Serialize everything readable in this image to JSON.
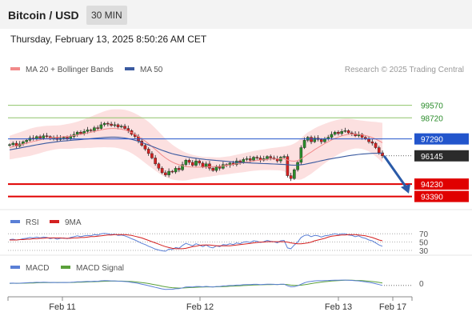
{
  "header": {
    "title": "Bitcoin / USD",
    "timeframe": "30 MIN"
  },
  "datetime": "Thursday, February 13, 2025 8:50:26 AM CET",
  "legend": {
    "ma20": "MA 20 + Bollinger Bands",
    "ma50": "MA 50"
  },
  "credit": "Research © 2025 Trading Central",
  "colors": {
    "up": "#2a8c2a",
    "down": "#d42020",
    "ma20": "#f28a8a",
    "ma50": "#3a5aa0",
    "band": "#fbd8d8",
    "resistance": "#8fc46a",
    "support": "#e00000",
    "pivot": "#2255cc",
    "rsi": "#5a7fd6",
    "rsi_ma": "#d42020",
    "macd": "#5a7fd6",
    "macd_signal": "#5aa03a",
    "arrow": "#2a5aa8"
  },
  "chart_data": [
    {
      "type": "candlestick",
      "x_ticks": [
        "Feb 11",
        "Feb 12",
        "Feb 13",
        "Feb 17"
      ],
      "ylim": [
        92500,
        101500
      ],
      "levels": [
        {
          "label": "99570",
          "value": 99570,
          "kind": "resistance"
        },
        {
          "label": "98720",
          "value": 98720,
          "kind": "resistance"
        },
        {
          "label": "97290",
          "value": 97290,
          "kind": "pivot"
        },
        {
          "label": "96145",
          "value": 96145,
          "kind": "last"
        },
        {
          "label": "94230",
          "value": 94230,
          "kind": "support"
        },
        {
          "label": "93390",
          "value": 93390,
          "kind": "support"
        }
      ],
      "close": [
        96900,
        97000,
        96800,
        96950,
        97100,
        97200,
        97350,
        97300,
        97450,
        97350,
        97500,
        97450,
        97300,
        97400,
        97250,
        97350,
        97400,
        97300,
        97450,
        97600,
        97750,
        97650,
        97800,
        97900,
        97850,
        98050,
        98000,
        98250,
        98350,
        98300,
        98200,
        98250,
        98100,
        98150,
        98000,
        97850,
        97600,
        97450,
        97150,
        96850,
        96600,
        96300,
        96000,
        95600,
        95300,
        95000,
        94850,
        95100,
        95050,
        95300,
        95200,
        95550,
        95850,
        95700,
        95500,
        95800,
        95650,
        95400,
        95600,
        95300,
        95150,
        95400,
        95300,
        95550,
        95500,
        95650,
        95550,
        95800,
        95700,
        95900,
        95950,
        95850,
        96050,
        96000,
        95850,
        95950,
        96100,
        96000,
        95950,
        95800,
        96050,
        96100,
        94800,
        94600,
        95200,
        95700,
        96700,
        97200,
        97400,
        97100,
        97350,
        97250,
        97100,
        97300,
        97400,
        97600,
        97750,
        97650,
        97800,
        97850,
        97700,
        97650,
        97500,
        97600,
        97400,
        97300,
        97100,
        97000,
        96700,
        96350,
        96145
      ],
      "ma20": [
        96700,
        96760,
        96820,
        96880,
        96940,
        97000,
        97060,
        97120,
        97180,
        97220,
        97280,
        97320,
        97350,
        97380,
        97400,
        97420,
        97440,
        97460,
        97480,
        97520,
        97560,
        97600,
        97640,
        97700,
        97740,
        97800,
        97850,
        97900,
        97950,
        97980,
        98000,
        98000,
        97980,
        97950,
        97900,
        97820,
        97720,
        97600,
        97460,
        97300,
        97140,
        96960,
        96780,
        96580,
        96380,
        96180,
        96000,
        95850,
        95720,
        95620,
        95540,
        95470,
        95420,
        95400,
        95390,
        95380,
        95380,
        95380,
        95390,
        95400,
        95410,
        95420,
        95440,
        95460,
        95490,
        95520,
        95560,
        95600,
        95640,
        95680,
        95720,
        95760,
        95800,
        95830,
        95860,
        95880,
        95900,
        95920,
        95930,
        95940,
        95950,
        95940,
        95860,
        95800,
        95780,
        95820,
        95940,
        96100,
        96260,
        96400,
        96560,
        96700,
        96840,
        96980,
        97100,
        97220,
        97320,
        97420,
        97500,
        97560,
        97600,
        97620,
        97620,
        97600,
        97570,
        97520,
        97460,
        97380,
        97280,
        97160,
        97030
      ],
      "ma50": [
        96550,
        96590,
        96630,
        96670,
        96720,
        96760,
        96800,
        96850,
        96890,
        96930,
        96970,
        97010,
        97040,
        97070,
        97100,
        97130,
        97150,
        97170,
        97190,
        97210,
        97230,
        97250,
        97270,
        97290,
        97310,
        97330,
        97350,
        97370,
        97390,
        97400,
        97410,
        97410,
        97400,
        97380,
        97350,
        97310,
        97260,
        97200,
        97130,
        97050,
        96970,
        96880,
        96790,
        96700,
        96610,
        96520,
        96440,
        96360,
        96290,
        96230,
        96180,
        96130,
        96090,
        96050,
        96010,
        95980,
        95950,
        95920,
        95890,
        95870,
        95850,
        95830,
        95810,
        95790,
        95770,
        95750,
        95730,
        95710,
        95690,
        95680,
        95670,
        95660,
        95650,
        95640,
        95630,
        95620,
        95610,
        95600,
        95590,
        95580,
        95570,
        95560,
        95540,
        95520,
        95510,
        95520,
        95540,
        95570,
        95610,
        95660,
        95710,
        95760,
        95810,
        95860,
        95910,
        95950,
        95990,
        96030,
        96070,
        96110,
        96150,
        96180,
        96210,
        96240,
        96260,
        96280,
        96300,
        96310,
        96320,
        96320,
        96310
      ],
      "band_width": [
        800,
        820,
        840,
        860,
        880,
        900,
        920,
        920,
        920,
        900,
        880,
        860,
        840,
        820,
        800,
        800,
        820,
        840,
        860,
        880,
        900,
        940,
        980,
        1020,
        1060,
        1100,
        1140,
        1180,
        1220,
        1260,
        1280,
        1300,
        1320,
        1340,
        1360,
        1380,
        1400,
        1420,
        1440,
        1460,
        1480,
        1480,
        1460,
        1440,
        1400,
        1360,
        1300,
        1240,
        1180,
        1120,
        1060,
        1000,
        940,
        880,
        820,
        780,
        740,
        700,
        680,
        660,
        640,
        620,
        600,
        600,
        600,
        600,
        610,
        620,
        630,
        640,
        650,
        660,
        670,
        680,
        690,
        700,
        720,
        740,
        760,
        780,
        800,
        840,
        960,
        1080,
        1200,
        1300,
        1400,
        1460,
        1480,
        1470,
        1450,
        1420,
        1380,
        1340,
        1300,
        1260,
        1220,
        1180,
        1140,
        1100,
        1060,
        1020,
        980,
        960,
        960,
        980,
        1020,
        1080,
        1160,
        1250,
        1350
      ]
    },
    {
      "type": "line",
      "name": "RSI",
      "series": [
        {
          "name": "RSI"
        },
        {
          "name": "9MA"
        }
      ],
      "ylim": [
        0,
        100
      ],
      "levels": [
        70,
        50,
        30
      ],
      "level_labels": [
        "70",
        "50",
        "30"
      ],
      "rsi": [
        56,
        57,
        55,
        56,
        58,
        59,
        61,
        60,
        62,
        60,
        62,
        61,
        58,
        60,
        57,
        59,
        60,
        58,
        61,
        63,
        65,
        63,
        65,
        66,
        65,
        68,
        67,
        70,
        71,
        70,
        68,
        69,
        66,
        67,
        65,
        62,
        58,
        55,
        51,
        47,
        44,
        40,
        37,
        33,
        31,
        29,
        28,
        33,
        32,
        37,
        35,
        42,
        47,
        44,
        41,
        46,
        43,
        39,
        43,
        38,
        36,
        41,
        39,
        44,
        43,
        46,
        44,
        48,
        46,
        50,
        51,
        49,
        53,
        52,
        49,
        51,
        54,
        52,
        51,
        48,
        53,
        54,
        36,
        34,
        43,
        50,
        61,
        66,
        67,
        63,
        66,
        65,
        62,
        65,
        66,
        68,
        70,
        68,
        70,
        70,
        67,
        66,
        63,
        65,
        61,
        59,
        55,
        53,
        48,
        43,
        40
      ],
      "rsi_ma": [
        55,
        55,
        55,
        56,
        56,
        57,
        57,
        58,
        58,
        59,
        59,
        60,
        60,
        60,
        60,
        60,
        59,
        59,
        59,
        60,
        60,
        61,
        61,
        62,
        63,
        63,
        64,
        65,
        66,
        67,
        67,
        68,
        68,
        68,
        68,
        67,
        66,
        64,
        62,
        60,
        57,
        54,
        51,
        48,
        45,
        42,
        39,
        37,
        35,
        34,
        34,
        34,
        35,
        37,
        39,
        40,
        42,
        43,
        43,
        43,
        42,
        41,
        41,
        41,
        41,
        41,
        42,
        43,
        44,
        45,
        46,
        47,
        48,
        49,
        50,
        50,
        51,
        51,
        51,
        51,
        51,
        51,
        50,
        48,
        47,
        46,
        46,
        47,
        48,
        50,
        53,
        55,
        57,
        59,
        62,
        64,
        65,
        66,
        67,
        67,
        68,
        68,
        68,
        67,
        66,
        65,
        63,
        61,
        58,
        55,
        53
      ]
    },
    {
      "type": "line",
      "name": "MACD",
      "series": [
        {
          "name": "MACD"
        },
        {
          "name": "MACD Signal"
        }
      ],
      "zero_label": "0",
      "ylim": [
        -700,
        500
      ],
      "macd": [
        40,
        45,
        35,
        40,
        50,
        60,
        75,
        80,
        90,
        85,
        95,
        90,
        80,
        85,
        75,
        80,
        85,
        80,
        90,
        105,
        120,
        115,
        130,
        140,
        135,
        155,
        150,
        175,
        185,
        180,
        170,
        170,
        155,
        150,
        135,
        115,
        85,
        60,
        25,
        -15,
        -60,
        -105,
        -150,
        -200,
        -245,
        -290,
        -320,
        -310,
        -310,
        -280,
        -275,
        -230,
        -180,
        -175,
        -185,
        -150,
        -150,
        -170,
        -145,
        -165,
        -180,
        -150,
        -150,
        -120,
        -115,
        -95,
        -95,
        -70,
        -70,
        -50,
        -40,
        -45,
        -25,
        -25,
        -40,
        -30,
        -15,
        -20,
        -25,
        -40,
        -20,
        -15,
        -110,
        -170,
        -160,
        -110,
        -20,
        60,
        120,
        140,
        170,
        180,
        180,
        190,
        195,
        205,
        215,
        215,
        220,
        220,
        210,
        200,
        180,
        170,
        145,
        120,
        85,
        55,
        10,
        -40,
        -90
      ],
      "macd_signal": [
        30,
        32,
        33,
        34,
        37,
        42,
        48,
        54,
        62,
        66,
        72,
        75,
        76,
        78,
        78,
        78,
        79,
        79,
        81,
        86,
        93,
        97,
        104,
        111,
        116,
        124,
        129,
        138,
        147,
        153,
        157,
        160,
        159,
        158,
        153,
        146,
        134,
        119,
        100,
        77,
        50,
        19,
        -15,
        -52,
        -91,
        -131,
        -169,
        -197,
        -219,
        -232,
        -241,
        -239,
        -227,
        -217,
        -210,
        -198,
        -188,
        -184,
        -176,
        -174,
        -175,
        -170,
        -166,
        -157,
        -149,
        -138,
        -129,
        -117,
        -108,
        -96,
        -85,
        -77,
        -66,
        -58,
        -54,
        -49,
        -42,
        -38,
        -35,
        -36,
        -33,
        -29,
        -45,
        -70,
        -88,
        -93,
        -78,
        -51,
        -15,
        15,
        48,
        77,
        101,
        124,
        144,
        161,
        176,
        188,
        198,
        207,
        208,
        207,
        202,
        195,
        186,
        171,
        154,
        135,
        111,
        83,
        52
      ]
    }
  ]
}
